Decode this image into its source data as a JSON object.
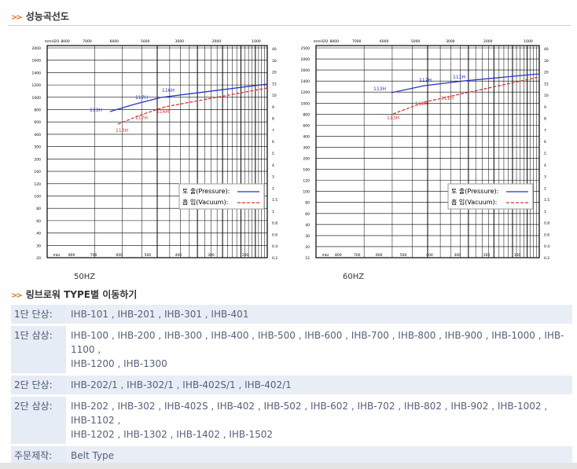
{
  "header": {
    "title": "성능곡선도"
  },
  "charts": [
    {
      "caption": "50HZ",
      "top_ticks": [
        "mmH2O",
        "8000",
        "7000",
        "6000",
        "5000",
        "3000",
        "2000",
        "1000"
      ],
      "left_ticks": [
        "2000",
        "1600",
        "1400",
        "1200",
        "1000",
        "800",
        "600",
        "400",
        "300",
        "200",
        "160",
        "120",
        "100",
        "80",
        "60",
        "40",
        "30",
        "20"
      ],
      "right_ticks": [
        "40",
        "30",
        "20",
        "15",
        "10",
        "9",
        "8",
        "7",
        "6",
        "5",
        "4",
        "3",
        "2",
        "1.5",
        "1",
        "0.8",
        "0.6",
        "0.4",
        "0.2"
      ],
      "bottom_ticks": [
        "mbr",
        "800",
        "700",
        "600",
        "500",
        "400",
        "300",
        "200"
      ],
      "curve_labels": [
        "113H",
        "117H",
        "116H",
        "113H",
        "117H",
        "116H"
      ],
      "legend": [
        "토 출(Pressure):",
        "흡 입(Vacuum):"
      ]
    },
    {
      "caption": "60HZ",
      "top_ticks": [
        "mmH2O",
        "8000",
        "7000",
        "6000",
        "5000",
        "3000",
        "2000",
        "1000"
      ],
      "left_ticks": [
        "2500",
        "2000",
        "1600",
        "1400",
        "1200",
        "1000",
        "800",
        "600",
        "400",
        "300",
        "200",
        "160",
        "120",
        "100",
        "80",
        "60",
        "40",
        "30",
        "20",
        "12"
      ],
      "right_ticks": [
        "40",
        "30",
        "20",
        "15",
        "10",
        "9",
        "8",
        "7",
        "6",
        "5",
        "4",
        "3",
        "2",
        "1.5",
        "1",
        "0.8",
        "0.6",
        "0.4",
        "0.2"
      ],
      "bottom_ticks": [
        "mbr",
        "800",
        "700",
        "600",
        "500",
        "400",
        "300",
        "200",
        "100"
      ],
      "curve_labels": [
        "113H",
        "112H",
        "111H",
        "113H",
        "112H",
        "111H"
      ],
      "legend": [
        "토 출(Pressure):",
        "흡 입(Vacuum):"
      ]
    }
  ],
  "section": {
    "title": "링브로워 TYPE별 이동하기"
  },
  "table": {
    "rows": [
      [
        "1단 단상:",
        [
          "IHB-101 , IHB-201 , IHB-301 , IHB-401"
        ]
      ],
      [
        "1단 삼상:",
        [
          "IHB-100 , IHB-200 , IHB-300 , IHB-400 , IHB-500 , IHB-600 , IHB-700 , IHB-800 , IHB-900 , IHB-1000 , IHB-1100 ,",
          "IHB-1200 , IHB-1300"
        ]
      ],
      [
        "2단 단상:",
        [
          "IHB-202/1 , IHB-302/1 , IHB-402S/1 , IHB-402/1"
        ]
      ],
      [
        "2단 삼상:",
        [
          "IHB-202 , IHB-302 , IHB-402S , IHB-402 , IHB-502 , IHB-602 , IHB-702 , IHB-802 , IHB-902 , IHB-1002 , IHB-1102 ,",
          "IHB-1202 , IHB-1302 , IHB-1402 , IHB-1502"
        ]
      ],
      [
        "주문제작:",
        [
          "Belt Type"
        ]
      ]
    ]
  }
}
